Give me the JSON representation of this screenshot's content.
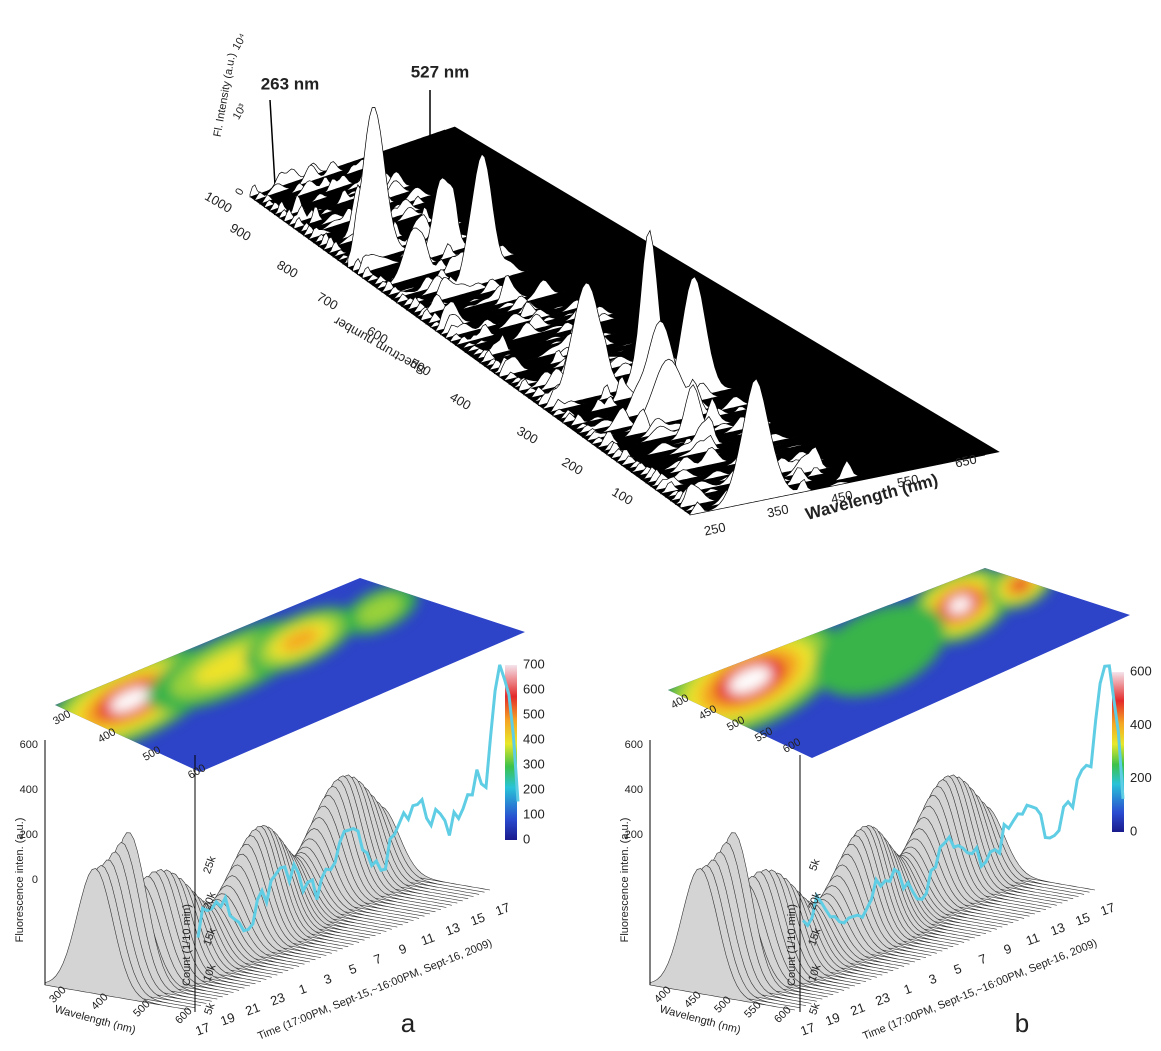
{
  "top": {
    "annotations": [
      "263 nm",
      "527 nm"
    ],
    "y_label": "Fl. Intensity (a.u.)",
    "y_ticks": [
      "10⁴",
      "10³",
      "0"
    ],
    "spectrum_ticks": [
      "1000",
      "900",
      "800",
      "700",
      "600",
      "500",
      "400",
      "300",
      "200",
      "100"
    ],
    "spectrum_label": "Spectrum number",
    "wavelength_ticks": [
      "250",
      "350",
      "450",
      "550",
      "650"
    ],
    "wavelength_label": "Wavelength (nm)"
  },
  "panels": [
    {
      "label": "a",
      "colorbar_ticks": [
        "700",
        "600",
        "500",
        "400",
        "300",
        "200",
        "100",
        "0"
      ],
      "contour_ticks": [
        "300",
        "400",
        "500",
        "600"
      ],
      "intensity_label": "Fluorescence inten. (a.u.)",
      "intensity_ticks": [
        "600",
        "400",
        "200",
        "0"
      ],
      "wavelength_ticks": [
        "300",
        "400",
        "500",
        "600"
      ],
      "wavelength_label": "Wavelength (nm)",
      "count_label": "Count (1/10 min)",
      "count_ticks": [
        "25k",
        "20k",
        "15k",
        "10k",
        "5k"
      ],
      "time_ticks": [
        "17",
        "19",
        "21",
        "23",
        "1",
        "3",
        "5",
        "7",
        "9",
        "11",
        "13",
        "15",
        "17"
      ],
      "time_label": "Time (17:00PM, Sept-15,~16:00PM, Sept-16, 2009)"
    },
    {
      "label": "b",
      "colorbar_ticks": [
        "600",
        "400",
        "200",
        "0"
      ],
      "contour_ticks": [
        "400",
        "450",
        "500",
        "550",
        "600"
      ],
      "intensity_label": "Fluorescence inten. (a.u.)",
      "intensity_ticks": [
        "600",
        "400",
        "200"
      ],
      "wavelength_ticks": [
        "400",
        "450",
        "500",
        "550",
        "600"
      ],
      "wavelength_label": "Wavelength (nm)",
      "count_label": "Count (1/10 min)",
      "count_ticks": [
        "5k",
        "20k",
        "15k",
        "10k",
        "5k"
      ],
      "time_ticks": [
        "17",
        "19",
        "21",
        "23",
        "1",
        "3",
        "5",
        "7",
        "9",
        "11",
        "13",
        "15",
        "17"
      ],
      "time_label": "Time (17:00PM, Sept-15,~16:00PM, Sept-16, 2009)"
    }
  ]
}
